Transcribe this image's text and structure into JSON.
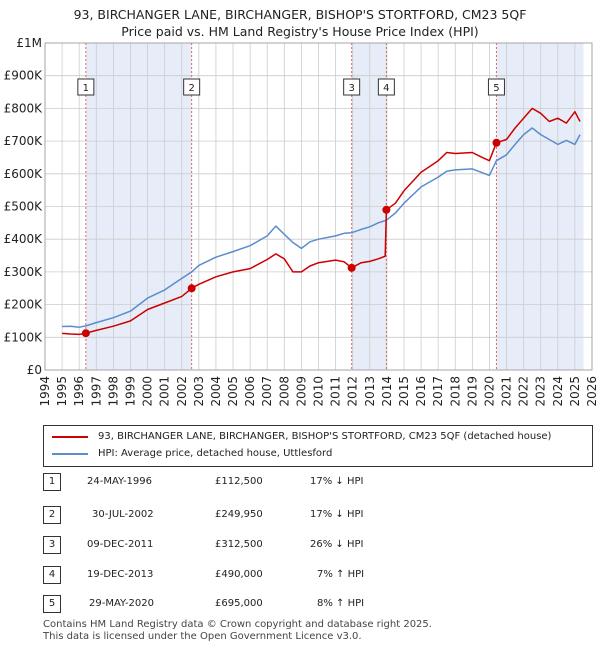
{
  "title_line1": "93, BIRCHANGER LANE, BIRCHANGER, BISHOP'S STORTFORD, CM23 5QF",
  "title_line2": "Price paid vs. HM Land Registry's House Price Index (HPI)",
  "colors": {
    "price": "#cc0000",
    "hpi": "#5b8ccc",
    "shade": "#e6edf8",
    "grid": "#cccccc",
    "marker_line": "#dd6666"
  },
  "legend": {
    "price_label": "93, BIRCHANGER LANE, BIRCHANGER, BISHOP'S STORTFORD, CM23 5QF (detached house)",
    "hpi_label": "HPI: Average price, detached house, Uttlesford"
  },
  "sales": [
    {
      "num": "1",
      "date": "24-MAY-1996",
      "price": "£112,500",
      "hpi_delta": "17% ↓ HPI"
    },
    {
      "num": "2",
      "date": "30-JUL-2002",
      "price": "£249,950",
      "hpi_delta": "17% ↓ HPI"
    },
    {
      "num": "3",
      "date": "09-DEC-2011",
      "price": "£312,500",
      "hpi_delta": "26% ↓ HPI"
    },
    {
      "num": "4",
      "date": "19-DEC-2013",
      "price": "£490,000",
      "hpi_delta": "7% ↑ HPI"
    },
    {
      "num": "5",
      "date": "29-MAY-2020",
      "price": "£695,000",
      "hpi_delta": "8% ↑ HPI"
    }
  ],
  "footer_line1": "Contains HM Land Registry data © Crown copyright and database right 2025.",
  "footer_line2": "This data is licensed under the Open Government Licence v3.0.",
  "chart_data": {
    "type": "line",
    "xlim": [
      1994,
      2026
    ],
    "ylim": [
      0,
      1000000
    ],
    "y_ticks": [
      0,
      100000,
      200000,
      300000,
      400000,
      500000,
      600000,
      700000,
      800000,
      900000,
      1000000
    ],
    "y_tick_labels": [
      "£0",
      "£100K",
      "£200K",
      "£300K",
      "£400K",
      "£500K",
      "£600K",
      "£700K",
      "£800K",
      "£900K",
      "£1M"
    ],
    "x_ticks": [
      "1994",
      "1995",
      "1996",
      "1997",
      "1998",
      "1999",
      "2000",
      "2001",
      "2002",
      "2003",
      "2004",
      "2005",
      "2006",
      "2007",
      "2008",
      "2009",
      "2010",
      "2011",
      "2012",
      "2013",
      "2014",
      "2015",
      "2016",
      "2017",
      "2018",
      "2019",
      "2020",
      "2021",
      "2022",
      "2023",
      "2024",
      "2025",
      "2026"
    ],
    "shaded_ranges": [
      [
        1996.39,
        2002.58
      ],
      [
        2011.94,
        2013.97
      ],
      [
        2020.41,
        2025.5
      ]
    ],
    "sale_markers": [
      {
        "label": "1",
        "x": 1996.39,
        "y": 112500
      },
      {
        "label": "2",
        "x": 2002.58,
        "y": 249950
      },
      {
        "label": "3",
        "x": 2011.94,
        "y": 312500
      },
      {
        "label": "4",
        "x": 2013.97,
        "y": 490000
      },
      {
        "label": "5",
        "x": 2020.41,
        "y": 695000
      }
    ],
    "series": [
      {
        "name": "93, BIRCHANGER LANE, BIRCHANGER, BISHOP'S STORTFORD, CM23 5QF (detached house)",
        "x": [
          1995.0,
          1995.5,
          1996.0,
          1996.39,
          1997.0,
          1998.0,
          1999.0,
          2000.0,
          2001.0,
          2002.0,
          2002.58,
          2003.0,
          2004.0,
          2005.0,
          2006.0,
          2007.0,
          2007.5,
          2008.0,
          2008.5,
          2009.0,
          2009.5,
          2010.0,
          2011.0,
          2011.5,
          2011.94,
          2012.5,
          2013.0,
          2013.5,
          2013.9,
          2013.97,
          2014.5,
          2015.0,
          2016.0,
          2017.0,
          2017.5,
          2018.0,
          2019.0,
          2019.5,
          2020.0,
          2020.41,
          2021.0,
          2021.5,
          2022.0,
          2022.5,
          2023.0,
          2023.5,
          2024.0,
          2024.5,
          2025.0,
          2025.3
        ],
        "values": [
          112000,
          110000,
          109000,
          112500,
          121000,
          134000,
          150000,
          185000,
          205000,
          225000,
          249950,
          262000,
          285000,
          300000,
          310000,
          338000,
          355000,
          340000,
          300000,
          300000,
          318000,
          328000,
          336000,
          331000,
          312500,
          328000,
          332000,
          340000,
          348000,
          490000,
          510000,
          548000,
          605000,
          640000,
          665000,
          662000,
          665000,
          652000,
          640000,
          695000,
          705000,
          740000,
          770000,
          800000,
          785000,
          760000,
          770000,
          755000,
          790000,
          760000
        ]
      },
      {
        "name": "HPI: Average price, detached house, Uttlesford",
        "x": [
          1995.0,
          1995.5,
          1996.0,
          1996.39,
          1997.0,
          1998.0,
          1999.0,
          2000.0,
          2001.0,
          2002.0,
          2002.58,
          2003.0,
          2004.0,
          2005.0,
          2006.0,
          2007.0,
          2007.5,
          2008.0,
          2008.5,
          2009.0,
          2009.5,
          2010.0,
          2011.0,
          2011.5,
          2011.94,
          2012.5,
          2013.0,
          2013.5,
          2013.97,
          2014.5,
          2015.0,
          2016.0,
          2017.0,
          2017.5,
          2018.0,
          2019.0,
          2019.5,
          2020.0,
          2020.41,
          2021.0,
          2021.5,
          2022.0,
          2022.5,
          2023.0,
          2023.5,
          2024.0,
          2024.5,
          2025.0,
          2025.3
        ],
        "values": [
          133000,
          134000,
          131000,
          135000,
          145000,
          160000,
          180000,
          220000,
          245000,
          280000,
          300000,
          320000,
          345000,
          362000,
          380000,
          410000,
          440000,
          415000,
          390000,
          372000,
          392000,
          400000,
          410000,
          418000,
          420000,
          430000,
          438000,
          450000,
          458000,
          480000,
          510000,
          560000,
          590000,
          608000,
          612000,
          615000,
          605000,
          595000,
          640000,
          658000,
          690000,
          720000,
          740000,
          720000,
          705000,
          690000,
          702000,
          690000,
          720000
        ]
      }
    ]
  }
}
